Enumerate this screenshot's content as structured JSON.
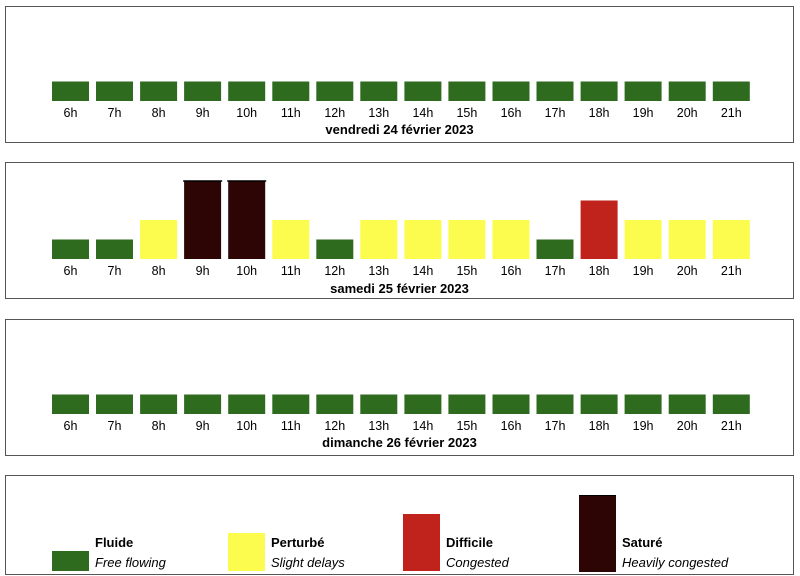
{
  "chart_data": [
    {
      "type": "bar",
      "title": "vendredi 24 février 2023",
      "categories": [
        "6h",
        "7h",
        "8h",
        "9h",
        "10h",
        "11h",
        "12h",
        "13h",
        "14h",
        "15h",
        "16h",
        "17h",
        "18h",
        "19h",
        "20h",
        "21h"
      ],
      "values": [
        1,
        1,
        1,
        1,
        1,
        1,
        1,
        1,
        1,
        1,
        1,
        1,
        1,
        1,
        1,
        1
      ],
      "status": [
        "fluide",
        "fluide",
        "fluide",
        "fluide",
        "fluide",
        "fluide",
        "fluide",
        "fluide",
        "fluide",
        "fluide",
        "fluide",
        "fluide",
        "fluide",
        "fluide",
        "fluide",
        "fluide"
      ],
      "ylim": [
        0,
        4
      ],
      "grid": false
    },
    {
      "type": "bar",
      "title": "samedi 25 février 2023",
      "categories": [
        "6h",
        "7h",
        "8h",
        "9h",
        "10h",
        "11h",
        "12h",
        "13h",
        "14h",
        "15h",
        "16h",
        "17h",
        "18h",
        "19h",
        "20h",
        "21h"
      ],
      "values": [
        1,
        1,
        2,
        4,
        4,
        2,
        1,
        2,
        2,
        2,
        2,
        1,
        3,
        2,
        2,
        2
      ],
      "status": [
        "fluide",
        "fluide",
        "perturbe",
        "sature",
        "sature",
        "perturbe",
        "fluide",
        "perturbe",
        "perturbe",
        "perturbe",
        "perturbe",
        "fluide",
        "difficile",
        "perturbe",
        "perturbe",
        "perturbe"
      ],
      "ylim": [
        0,
        4
      ],
      "grid": false
    },
    {
      "type": "bar",
      "title": "dimanche 26 février 2023",
      "categories": [
        "6h",
        "7h",
        "8h",
        "9h",
        "10h",
        "11h",
        "12h",
        "13h",
        "14h",
        "15h",
        "16h",
        "17h",
        "18h",
        "19h",
        "20h",
        "21h"
      ],
      "values": [
        1,
        1,
        1,
        1,
        1,
        1,
        1,
        1,
        1,
        1,
        1,
        1,
        1,
        1,
        1,
        1
      ],
      "status": [
        "fluide",
        "fluide",
        "fluide",
        "fluide",
        "fluide",
        "fluide",
        "fluide",
        "fluide",
        "fluide",
        "fluide",
        "fluide",
        "fluide",
        "fluide",
        "fluide",
        "fluide",
        "fluide"
      ],
      "ylim": [
        0,
        4
      ],
      "grid": false
    }
  ],
  "legend": [
    {
      "key": "fluide",
      "label": "Fluide",
      "description": "Free flowing",
      "level": 1,
      "color": "#2e6b1f"
    },
    {
      "key": "perturbe",
      "label": "Perturbé",
      "description": "Slight delays",
      "level": 2,
      "color": "#fcfc4f"
    },
    {
      "key": "difficile",
      "label": "Difficile",
      "description": "Congested",
      "level": 3,
      "color": "#c0221c"
    },
    {
      "key": "sature",
      "label": "Saturé",
      "description": "Heavily congested",
      "level": 4,
      "color": "#2e0505"
    }
  ]
}
